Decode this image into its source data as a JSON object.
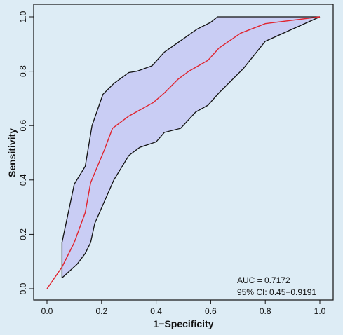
{
  "chart_data": {
    "type": "line",
    "xlabel": "1−Specificity",
    "ylabel": "Sensitivity",
    "xlim": [
      0,
      1
    ],
    "ylim": [
      0,
      1
    ],
    "x_ticks": [
      "0.0",
      "0.2",
      "0.4",
      "0.6",
      "0.8",
      "1.0"
    ],
    "y_ticks": [
      "0.0",
      "0.2",
      "0.4",
      "0.6",
      "0.8",
      "1.0"
    ],
    "grid": false,
    "annotations": [
      "AUC = 0.7172",
      "95% CI: 0.45−0.9191"
    ],
    "colors": {
      "roc": "#e0242f",
      "band_fill": "#c9cdf4",
      "band_edge": "#111111",
      "background": "#ddecf5"
    },
    "series": [
      {
        "role": "roc_curve",
        "x": [
          0.0,
          0.055,
          0.1,
          0.14,
          0.16,
          0.21,
          0.24,
          0.3,
          0.39,
          0.43,
          0.48,
          0.52,
          0.59,
          0.63,
          0.71,
          0.8,
          1.0
        ],
        "y": [
          0.0,
          0.08,
          0.17,
          0.28,
          0.39,
          0.51,
          0.59,
          0.635,
          0.685,
          0.72,
          0.77,
          0.8,
          0.84,
          0.885,
          0.94,
          0.975,
          1.0
        ]
      },
      {
        "role": "ci_upper",
        "x": [
          0.055,
          0.055,
          0.1,
          0.14,
          0.165,
          0.205,
          0.245,
          0.3,
          0.33,
          0.385,
          0.43,
          0.55,
          0.6,
          0.625,
          1.0
        ],
        "y": [
          0.04,
          0.17,
          0.385,
          0.45,
          0.6,
          0.715,
          0.755,
          0.795,
          0.8,
          0.82,
          0.87,
          0.955,
          0.98,
          1.0,
          1.0
        ]
      },
      {
        "role": "ci_lower",
        "x": [
          0.055,
          0.11,
          0.14,
          0.16,
          0.175,
          0.21,
          0.245,
          0.3,
          0.34,
          0.4,
          0.43,
          0.49,
          0.545,
          0.59,
          0.63,
          0.72,
          0.8,
          1.0
        ],
        "y": [
          0.04,
          0.09,
          0.13,
          0.17,
          0.24,
          0.32,
          0.4,
          0.49,
          0.52,
          0.54,
          0.575,
          0.59,
          0.65,
          0.675,
          0.72,
          0.81,
          0.91,
          1.0
        ]
      }
    ]
  }
}
